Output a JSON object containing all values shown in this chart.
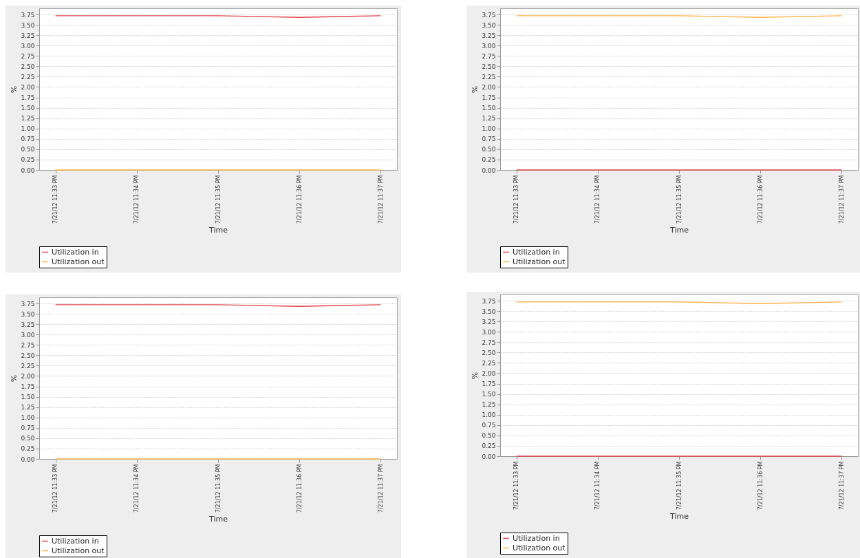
{
  "chart_data": [
    {
      "type": "line",
      "xlabel": "Time",
      "ylabel": "%",
      "categories": [
        "7/21/12 11:33 PM",
        "7/21/12 11:34 PM",
        "7/21/12 11:35 PM",
        "7/21/12 11:36 PM",
        "7/21/12 11:37 PM"
      ],
      "series": [
        {
          "name": "Utilization in",
          "color": "#e0474c",
          "values": [
            3.72,
            3.72,
            3.72,
            3.68,
            3.72
          ]
        },
        {
          "name": "Utilization out",
          "color": "#ffb347",
          "values": [
            0,
            0,
            0,
            0,
            0
          ]
        }
      ],
      "ylim": [
        0,
        3.9
      ],
      "yticks": [
        {
          "value": 0,
          "label": "0.00"
        },
        0.25,
        {
          "value": 0.5,
          "label": "0.50"
        },
        0.75,
        {
          "value": 1,
          "label": "1.00"
        },
        1.25,
        {
          "value": 1.5,
          "label": "1.50"
        },
        1.75,
        {
          "value": 2,
          "label": "2.00"
        },
        2.25,
        {
          "value": 2.5,
          "label": "2.50"
        },
        2.75,
        {
          "value": 3,
          "label": "3.00"
        },
        3.25,
        {
          "value": 3.5,
          "label": "3.50"
        },
        3.75
      ],
      "grid": "y",
      "legend": "bottom"
    },
    {
      "type": "line",
      "xlabel": "Time",
      "ylabel": "%",
      "categories": [
        "7/21/12 11:33 PM",
        "7/21/12 11:34 PM",
        "7/21/12 11:35 PM",
        "7/21/12 11:36 PM",
        "7/21/12 11:37 PM"
      ],
      "series": [
        {
          "name": "Utilization in",
          "color": "#e0474c",
          "values": [
            0,
            0,
            0,
            0,
            0
          ]
        },
        {
          "name": "Utilization out",
          "color": "#ffb347",
          "values": [
            3.72,
            3.72,
            3.72,
            3.68,
            3.72
          ]
        }
      ],
      "ylim": [
        0,
        3.9
      ],
      "yticks": [
        {
          "value": 0,
          "label": "0.00"
        },
        0.25,
        {
          "value": 0.5,
          "label": "0.50"
        },
        0.75,
        {
          "value": 1,
          "label": "1.00"
        },
        1.25,
        {
          "value": 1.5,
          "label": "1.50"
        },
        1.75,
        {
          "value": 2,
          "label": "2.00"
        },
        2.25,
        {
          "value": 2.5,
          "label": "2.50"
        },
        2.75,
        {
          "value": 3,
          "label": "3.00"
        },
        3.25,
        {
          "value": 3.5,
          "label": "3.50"
        },
        3.75
      ],
      "grid": "y",
      "legend": "bottom"
    },
    {
      "type": "line",
      "xlabel": "Time",
      "ylabel": "%",
      "categories": [
        "7/21/12 11:33 PM",
        "7/21/12 11:34 PM",
        "7/21/12 11:35 PM",
        "7/21/12 11:36 PM",
        "7/21/12 11:37 PM"
      ],
      "series": [
        {
          "name": "Utilization in",
          "color": "#e0474c",
          "values": [
            3.72,
            3.72,
            3.72,
            3.68,
            3.72
          ]
        },
        {
          "name": "Utilization out",
          "color": "#ffb347",
          "values": [
            0,
            0,
            0,
            0,
            0
          ]
        }
      ],
      "ylim": [
        0,
        3.9
      ],
      "yticks": [
        {
          "value": 0,
          "label": "0.00"
        },
        0.25,
        {
          "value": 0.5,
          "label": "0.50"
        },
        0.75,
        {
          "value": 1,
          "label": "1.00"
        },
        1.25,
        {
          "value": 1.5,
          "label": "1.50"
        },
        1.75,
        {
          "value": 2,
          "label": "2.00"
        },
        2.25,
        {
          "value": 2.5,
          "label": "2.50"
        },
        2.75,
        {
          "value": 3,
          "label": "3.00"
        },
        3.25,
        {
          "value": 3.5,
          "label": "3.50"
        },
        3.75
      ],
      "grid": "y",
      "legend": "bottom"
    },
    {
      "type": "line",
      "xlabel": "Time",
      "ylabel": "%",
      "categories": [
        "7/21/12 11:33 PM",
        "7/21/12 11:34 PM",
        "7/21/12 11:35 PM",
        "7/21/12 11:36 PM",
        "7/21/12 11:37 PM"
      ],
      "series": [
        {
          "name": "Utilization in",
          "color": "#e0474c",
          "values": [
            0,
            0,
            0,
            0,
            0
          ]
        },
        {
          "name": "Utilization out",
          "color": "#ffb347",
          "values": [
            3.72,
            3.72,
            3.72,
            3.68,
            3.72
          ]
        }
      ],
      "ylim": [
        0,
        3.9
      ],
      "yticks": [
        {
          "value": 0,
          "label": "0.00"
        },
        0.25,
        {
          "value": 0.5,
          "label": "0.50"
        },
        0.75,
        {
          "value": 1,
          "label": "1.00"
        },
        1.25,
        {
          "value": 1.5,
          "label": "1.50"
        },
        1.75,
        {
          "value": 2,
          "label": "2.00"
        },
        2.25,
        {
          "value": 2.5,
          "label": "2.50"
        },
        2.75,
        {
          "value": 3,
          "label": "3.00"
        },
        3.25,
        {
          "value": 3.5,
          "label": "3.50"
        },
        3.75
      ],
      "grid": "y",
      "legend": "bottom"
    }
  ]
}
